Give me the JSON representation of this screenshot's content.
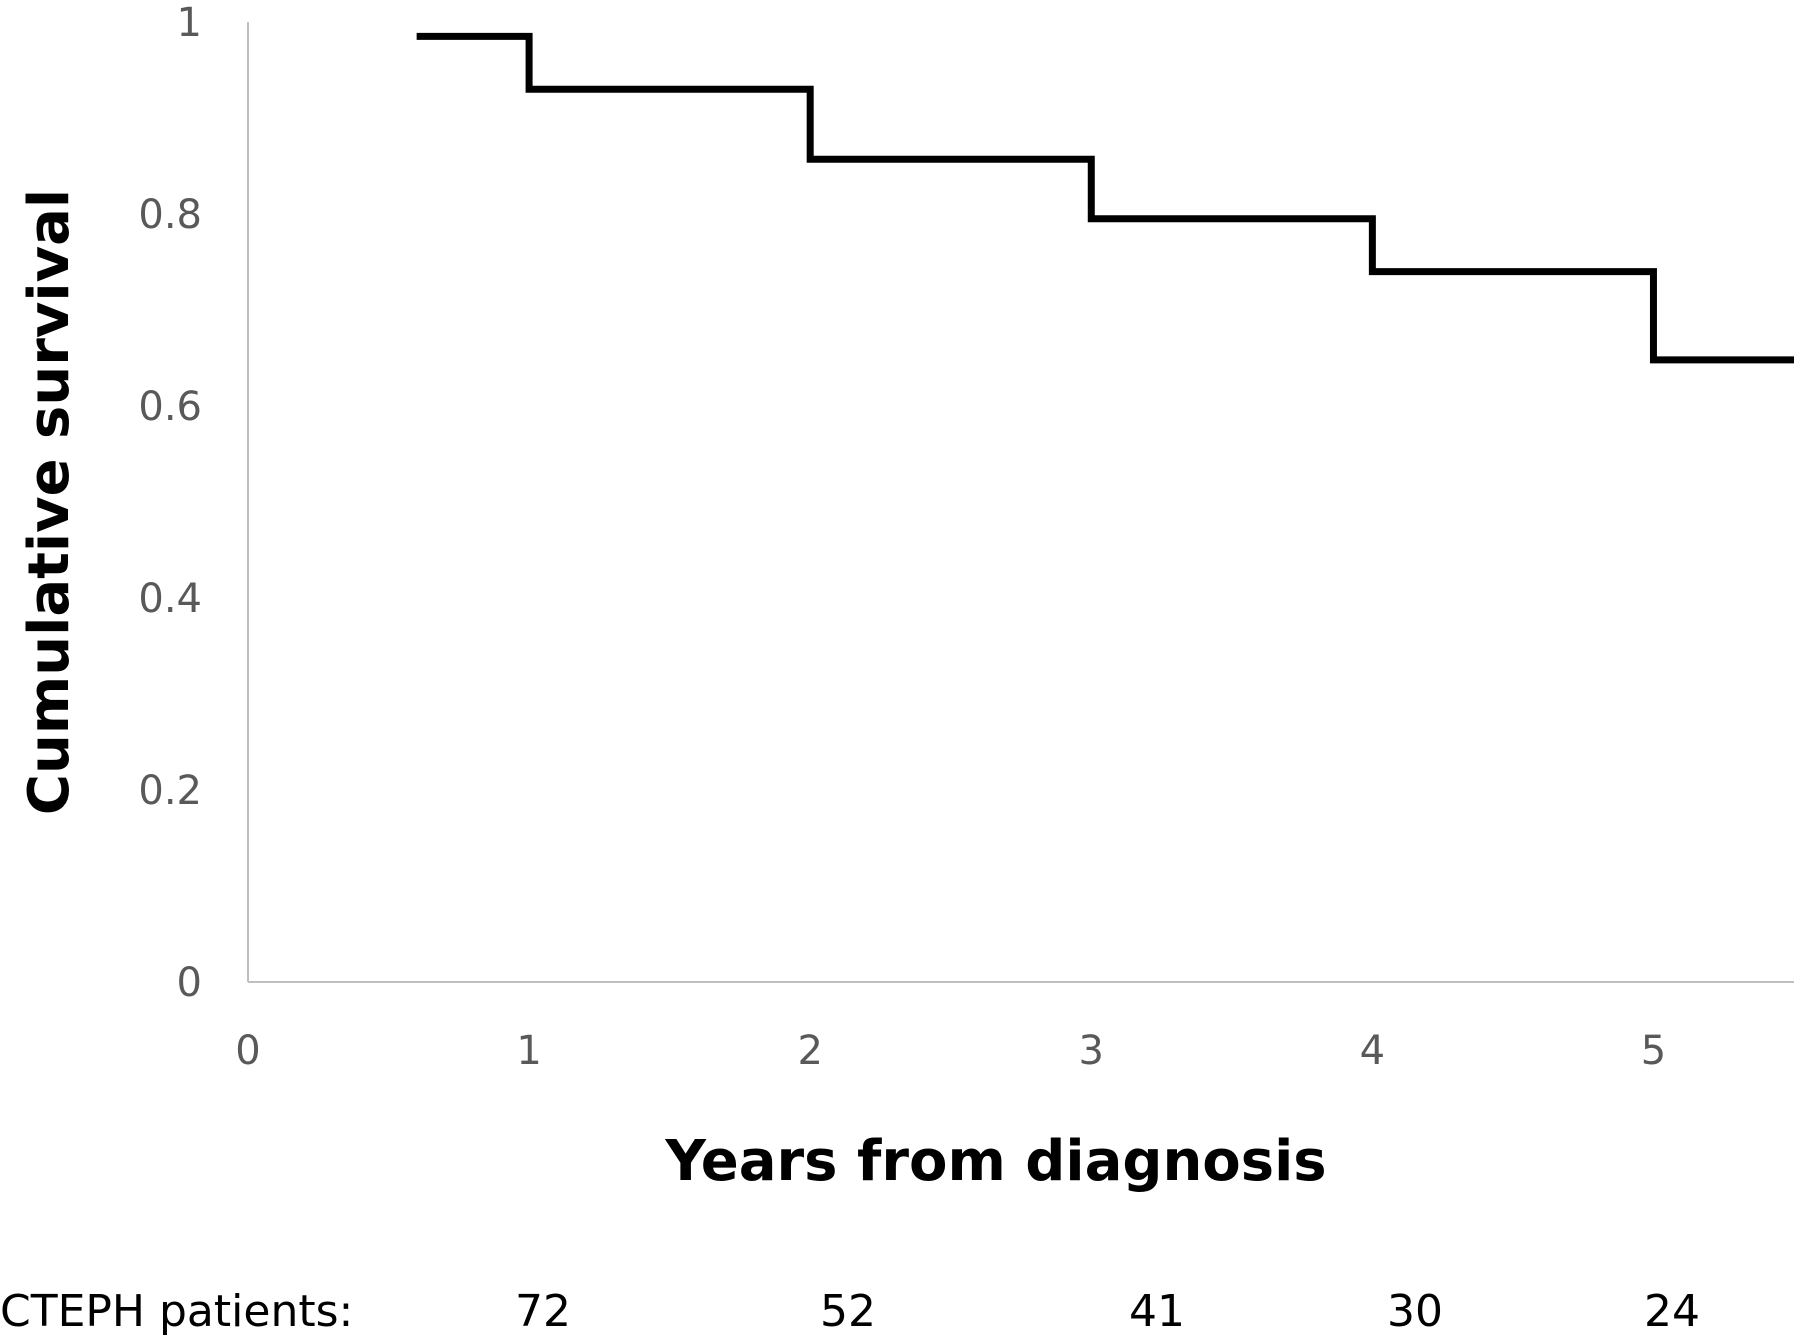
{
  "chart_data": {
    "type": "line",
    "step": true,
    "title": "",
    "xlabel": "Years from diagnosis",
    "ylabel": "Cumulative survival",
    "xlim": [
      0,
      5.5
    ],
    "ylim": [
      0,
      1
    ],
    "x_ticks": [
      0,
      1,
      2,
      3,
      4,
      5
    ],
    "y_ticks": [
      0,
      0.2,
      0.4,
      0.6,
      0.8,
      1
    ],
    "y_tick_labels": [
      "0",
      "0.2",
      "0.4",
      "0.6",
      "0.8",
      "1"
    ],
    "grid": false,
    "series": [
      {
        "points": [
          {
            "x": 0.6,
            "y": 0.985
          },
          {
            "x": 1,
            "y": 0.93
          },
          {
            "x": 2,
            "y": 0.857
          },
          {
            "x": 3,
            "y": 0.795
          },
          {
            "x": 4,
            "y": 0.74
          },
          {
            "x": 5,
            "y": 0.648
          },
          {
            "x": 5.5,
            "y": 0.648
          }
        ],
        "color": "#000000"
      }
    ],
    "risk_table": {
      "label": "CTEPH patients:",
      "counts": [
        "72",
        "52",
        "41",
        "30",
        "24"
      ]
    }
  }
}
